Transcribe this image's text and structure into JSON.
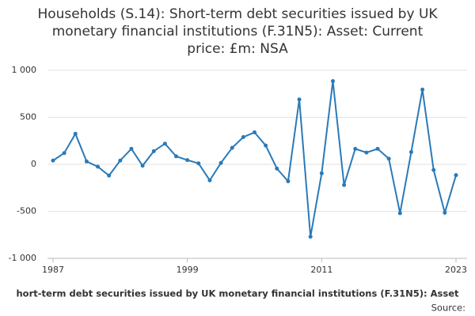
{
  "chart_data": {
    "type": "line",
    "title": [
      "Households (S.14): Short-term debt securities issued by UK",
      "monetary financial institutions (F.31N5): Asset: Current",
      "price: £m: NSA"
    ],
    "x_label": "hort-term debt securities issued by UK monetary financial institutions (F.31N5): Asset",
    "source": "Source:",
    "x": [
      1987,
      1988,
      1989,
      1990,
      1991,
      1992,
      1993,
      1994,
      1995,
      1996,
      1997,
      1998,
      1999,
      2000,
      2001,
      2002,
      2003,
      2004,
      2005,
      2006,
      2007,
      2008,
      2009,
      2010,
      2011,
      2012,
      2013,
      2014,
      2015,
      2016,
      2017,
      2018,
      2019,
      2020,
      2021,
      2022,
      2023
    ],
    "series": [
      {
        "name": "Households (S.14): Short-term debt securities issued by UK monetary financial institutions (F.31N5): Asset: Current price: £m: NSA",
        "color": "#2a7ab8",
        "values": [
          40,
          120,
          325,
          30,
          -25,
          -120,
          40,
          165,
          -15,
          140,
          220,
          85,
          45,
          10,
          -170,
          15,
          175,
          290,
          340,
          200,
          -45,
          -180,
          690,
          -770,
          -95,
          885,
          -220,
          165,
          125,
          165,
          60,
          -520,
          130,
          795,
          -60,
          -515,
          -115
        ]
      }
    ],
    "xlim": [
      1987,
      2023
    ],
    "xticks": [
      1987,
      1999,
      2011,
      2023
    ],
    "ylim": [
      -1000,
      1000
    ],
    "yticks": [
      {
        "value": -1000,
        "label": "-1 000"
      },
      {
        "value": -500,
        "label": "-500"
      },
      0,
      500,
      {
        "value": 1000,
        "label": "1 000"
      }
    ],
    "grid": true
  }
}
